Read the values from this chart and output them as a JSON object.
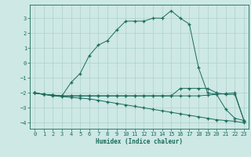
{
  "xlabel": "Humidex (Indice chaleur)",
  "background_color": "#cde8e5",
  "grid_color": "#afd0cd",
  "line_color": "#1a6b5a",
  "xlim": [
    -0.5,
    23.5
  ],
  "ylim": [
    -4.4,
    3.9
  ],
  "yticks": [
    -4,
    -3,
    -2,
    -1,
    0,
    1,
    2,
    3
  ],
  "xticks": [
    0,
    1,
    2,
    3,
    4,
    5,
    6,
    7,
    8,
    9,
    10,
    11,
    12,
    13,
    14,
    15,
    16,
    17,
    18,
    19,
    20,
    21,
    22,
    23
  ],
  "line1_x": [
    0,
    1,
    2,
    3,
    4,
    5,
    6,
    7,
    8,
    9,
    10,
    11,
    12,
    13,
    14,
    15,
    16,
    17,
    18,
    19,
    20,
    21,
    22,
    23
  ],
  "line1_y": [
    -2.0,
    -2.1,
    -2.2,
    -2.25,
    -2.3,
    -2.35,
    -2.4,
    -2.5,
    -2.6,
    -2.7,
    -2.8,
    -2.9,
    -3.0,
    -3.1,
    -3.2,
    -3.3,
    -3.4,
    -3.5,
    -3.6,
    -3.7,
    -3.8,
    -3.85,
    -3.9,
    -4.0
  ],
  "line2_x": [
    0,
    1,
    2,
    3,
    4,
    5,
    6,
    7,
    8,
    9,
    10,
    11,
    12,
    13,
    14,
    15,
    16,
    17,
    18,
    19,
    20,
    21,
    22,
    23
  ],
  "line2_y": [
    -2.0,
    -2.1,
    -2.15,
    -2.2,
    -2.2,
    -2.2,
    -2.2,
    -2.2,
    -2.2,
    -2.2,
    -2.2,
    -2.2,
    -2.2,
    -2.2,
    -2.2,
    -2.2,
    -2.2,
    -2.2,
    -2.2,
    -2.15,
    -2.1,
    -2.05,
    -2.0,
    -3.85
  ],
  "line3_x": [
    0,
    1,
    2,
    3,
    4,
    5,
    6,
    7,
    8,
    9,
    10,
    11,
    12,
    13,
    14,
    15,
    16,
    17,
    18,
    19,
    20,
    21,
    22,
    23
  ],
  "line3_y": [
    -2.0,
    -2.1,
    -2.15,
    -2.2,
    -2.2,
    -2.2,
    -2.2,
    -2.2,
    -2.2,
    -2.2,
    -2.2,
    -2.2,
    -2.2,
    -2.2,
    -2.2,
    -2.2,
    -1.7,
    -1.7,
    -1.7,
    -1.7,
    -2.0,
    -2.1,
    -2.1,
    -3.85
  ],
  "line4_x": [
    0,
    1,
    2,
    3,
    4,
    5,
    6,
    7,
    8,
    9,
    10,
    11,
    12,
    13,
    14,
    15,
    16,
    17,
    18,
    19,
    20,
    21,
    22,
    23
  ],
  "line4_y": [
    -2.0,
    -2.1,
    -2.15,
    -2.2,
    -1.3,
    -0.7,
    0.5,
    1.2,
    1.5,
    2.2,
    2.8,
    2.8,
    2.8,
    3.0,
    3.0,
    3.5,
    3.0,
    2.6,
    -0.3,
    -2.0,
    -2.1,
    -3.1,
    -3.7,
    -3.85
  ]
}
